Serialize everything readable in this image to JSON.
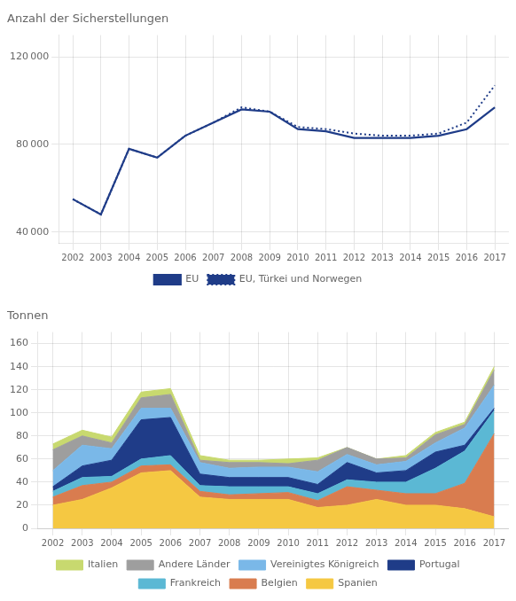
{
  "chart_data": [
    {
      "type": "line",
      "title": "Anzahl der Sicherstellungen",
      "x": [
        2002,
        2003,
        2004,
        2005,
        2006,
        2007,
        2008,
        2009,
        2010,
        2011,
        2012,
        2013,
        2014,
        2015,
        2016,
        2017
      ],
      "series": [
        {
          "name": "EU",
          "color": "#1f3c88",
          "line_style": "solid",
          "values": [
            55000,
            48000,
            78000,
            74000,
            84000,
            90000,
            96000,
            95000,
            87000,
            86000,
            83000,
            83000,
            83000,
            84000,
            87000,
            97000
          ]
        },
        {
          "name": "EU, Türkei und Norwegen",
          "color": "#1f3c88",
          "line_style": "dotted",
          "values": [
            55000,
            48000,
            78000,
            74000,
            84000,
            90000,
            97000,
            95000,
            88000,
            87000,
            85000,
            84000,
            84000,
            85000,
            90000,
            107000
          ]
        }
      ],
      "xlim": [
        2001.5,
        2017.5
      ],
      "xticks": [
        2002,
        2003,
        2004,
        2005,
        2006,
        2007,
        2008,
        2009,
        2010,
        2011,
        2012,
        2013,
        2014,
        2015,
        2016,
        2017
      ],
      "ylim": [
        35000,
        130000
      ],
      "yticks": [
        {
          "value": 40000,
          "label": "40 000"
        },
        {
          "value": 80000,
          "label": "80 000"
        },
        {
          "value": 120000,
          "label": "120 000"
        }
      ],
      "grid": true,
      "legend": "bottom"
    },
    {
      "type": "area",
      "title": "Tonnen",
      "stacked": true,
      "x": [
        2002,
        2003,
        2004,
        2005,
        2006,
        2007,
        2008,
        2009,
        2010,
        2011,
        2012,
        2013,
        2014,
        2015,
        2016,
        2017
      ],
      "series": [
        {
          "name": "Spanien",
          "color": "#f5c842",
          "values": [
            20,
            25,
            35,
            48,
            50,
            27,
            25,
            25,
            25,
            18,
            20,
            25,
            20,
            20,
            17,
            10
          ]
        },
        {
          "name": "Belgien",
          "color": "#d97c4f",
          "values": [
            7,
            12,
            5,
            6,
            5,
            5,
            4,
            5,
            6,
            6,
            16,
            8,
            10,
            10,
            22,
            72
          ]
        },
        {
          "name": "Frankreich",
          "color": "#5bb8d4",
          "values": [
            5,
            7,
            5,
            6,
            8,
            5,
            7,
            6,
            5,
            6,
            6,
            7,
            10,
            22,
            28,
            20
          ]
        },
        {
          "name": "Portugal",
          "color": "#1f3c88",
          "values": [
            4,
            10,
            14,
            34,
            33,
            10,
            8,
            8,
            8,
            8,
            15,
            8,
            10,
            14,
            5,
            2
          ]
        },
        {
          "name": "Vereinigtes Königreich",
          "color": "#7ab8e8",
          "values": [
            14,
            18,
            10,
            10,
            8,
            10,
            8,
            9,
            9,
            11,
            7,
            7,
            8,
            8,
            15,
            20
          ]
        },
        {
          "name": "Andere Länder",
          "color": "#9e9e9e",
          "values": [
            18,
            8,
            5,
            9,
            12,
            2,
            5,
            4,
            3,
            10,
            6,
            5,
            3,
            7,
            3,
            13
          ]
        },
        {
          "name": "Italien",
          "color": "#c8d96f",
          "values": [
            5,
            5,
            5,
            5,
            5,
            4,
            2,
            2,
            4,
            2,
            0,
            0,
            2,
            2,
            2,
            3
          ]
        }
      ],
      "xlim": [
        2001.5,
        2017.5
      ],
      "xticks": [
        2002,
        2003,
        2004,
        2005,
        2006,
        2007,
        2008,
        2009,
        2010,
        2011,
        2012,
        2013,
        2014,
        2015,
        2016,
        2017
      ],
      "ylim": [
        0,
        170
      ],
      "yticks": [
        0,
        20,
        40,
        60,
        80,
        100,
        120,
        140,
        160
      ],
      "grid": true,
      "legend": "bottom"
    }
  ]
}
